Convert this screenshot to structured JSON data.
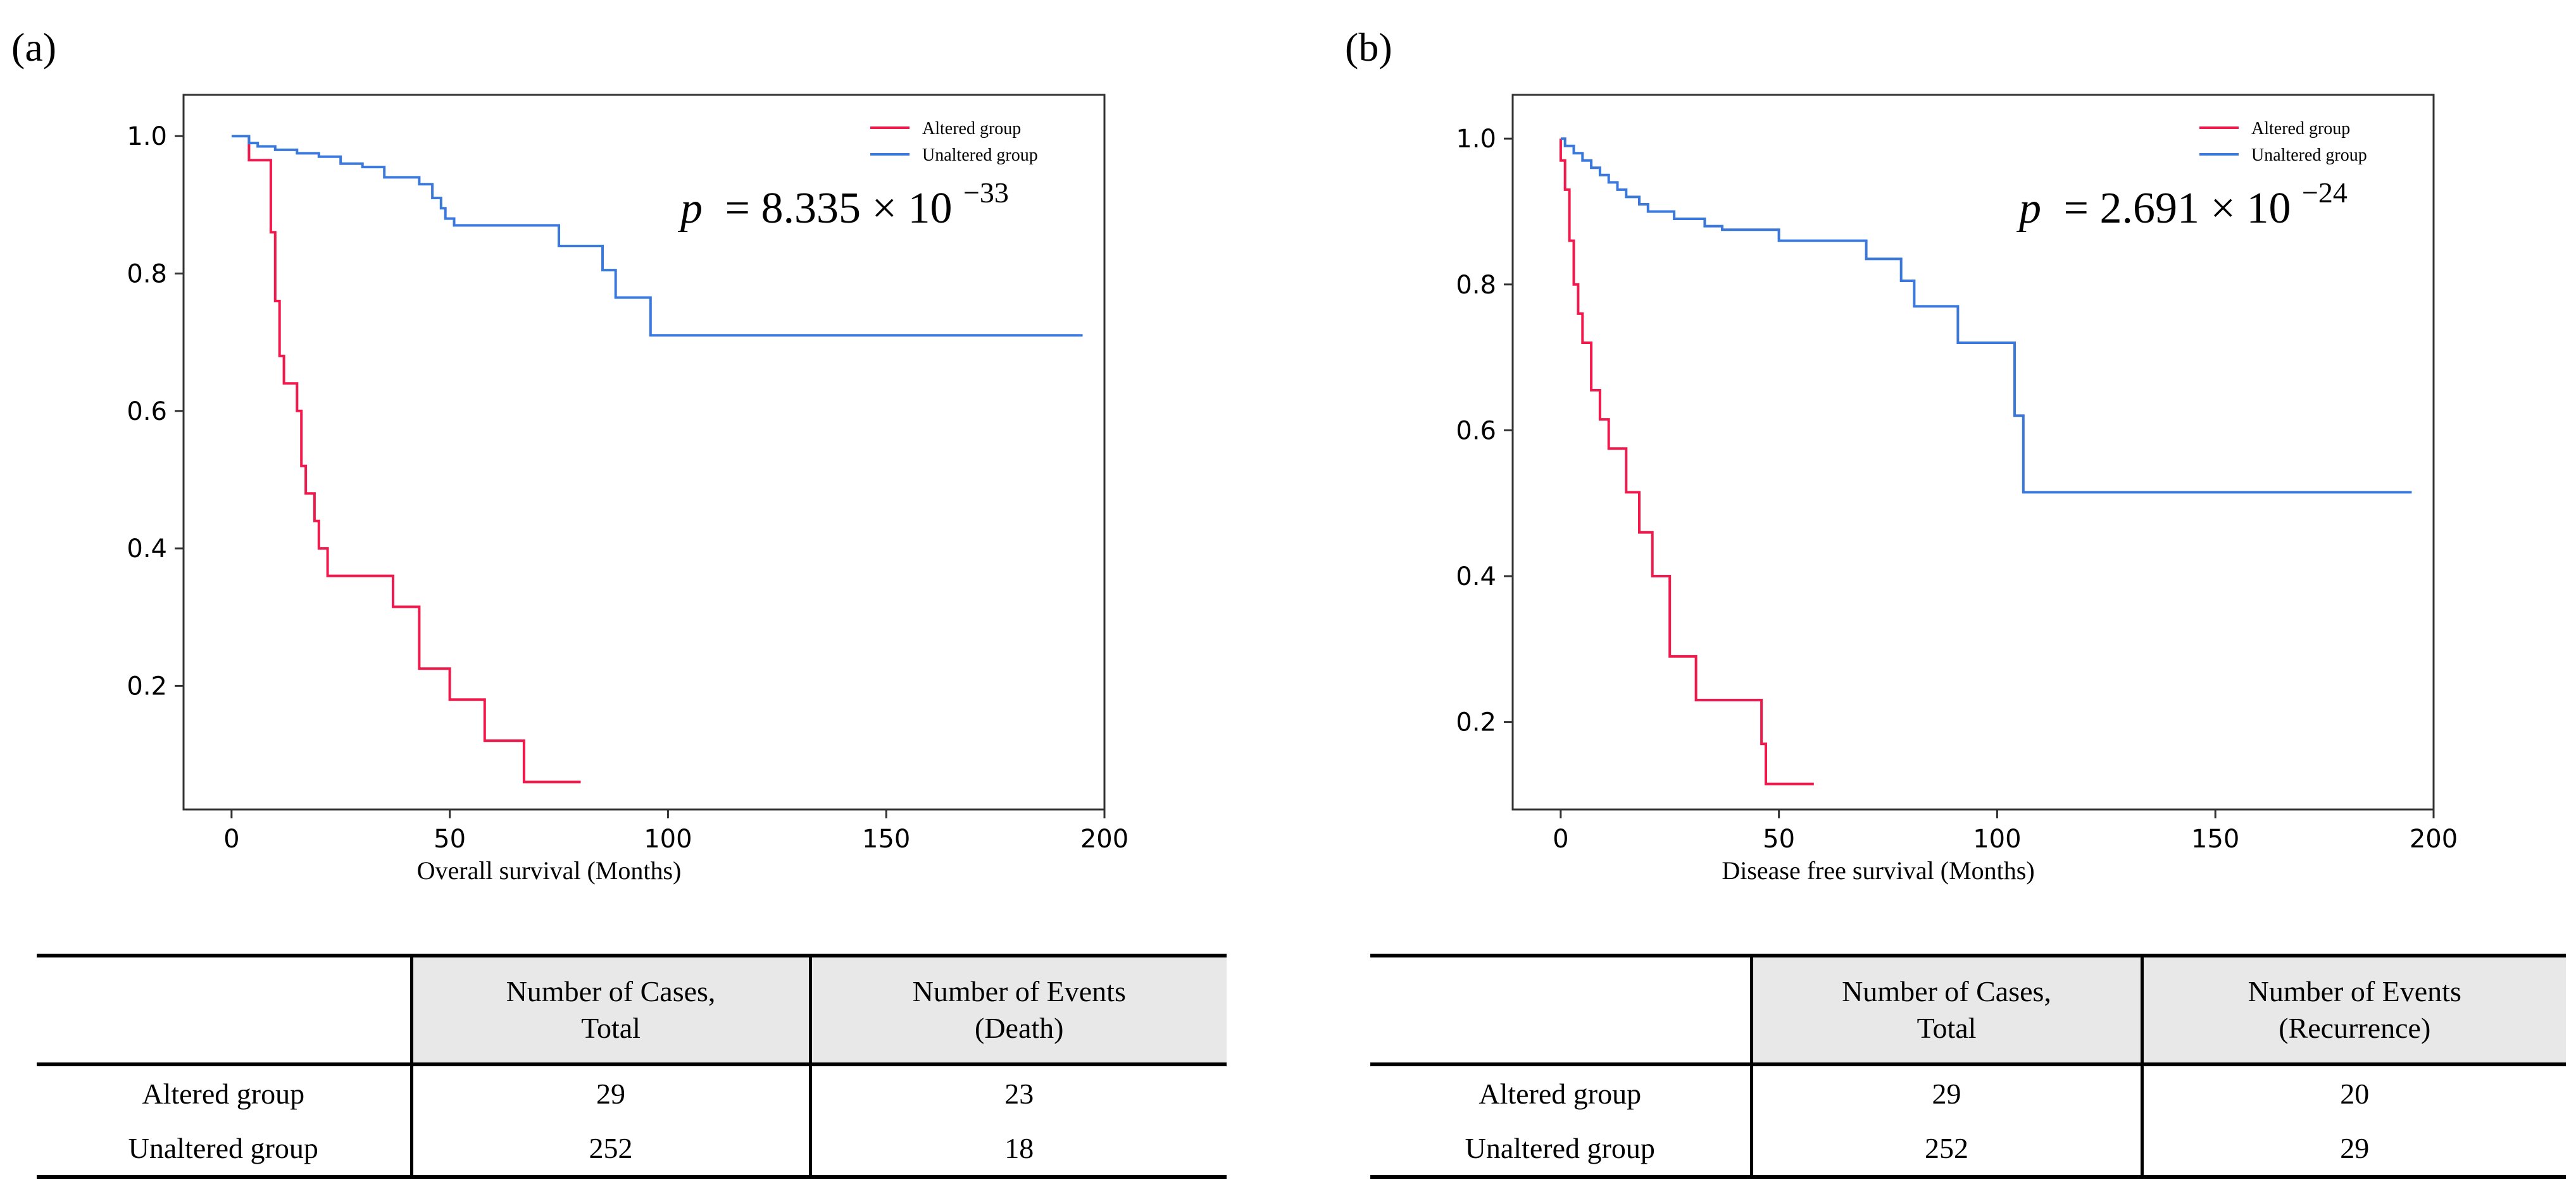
{
  "panels": {
    "a": {
      "label": "(a)",
      "p_prefix": "p",
      "p_value": "= 8.335 × 10",
      "p_exp": "−33",
      "table": {
        "headers": [
          "",
          "Number of Cases,",
          "Total",
          "Number of Events",
          "(Death)"
        ],
        "rows": [
          {
            "group": "Altered group",
            "cases": "29",
            "events": "23"
          },
          {
            "group": "Unaltered group",
            "cases": "252",
            "events": "18"
          }
        ]
      }
    },
    "b": {
      "label": "(b)",
      "p_prefix": "p",
      "p_value": "= 2.691 × 10",
      "p_exp": "−24",
      "table": {
        "headers": [
          "",
          "Number of Cases,",
          "Total",
          "Number of Events",
          "(Recurrence)"
        ],
        "rows": [
          {
            "group": "Altered group",
            "cases": "29",
            "events": "20"
          },
          {
            "group": "Unaltered group",
            "cases": "252",
            "events": "29"
          }
        ]
      }
    }
  },
  "colors": {
    "altered": "#f0194b",
    "unaltered": "#3b78dc",
    "axis": "#333333"
  },
  "chart_data": [
    {
      "type": "line",
      "step": true,
      "title": "",
      "xlabel": "Overall survival (Months)",
      "ylabel": "",
      "xlim": [
        -11,
        200
      ],
      "ylim": [
        0.02,
        1.06
      ],
      "xticks": [
        0,
        50,
        100,
        150,
        200
      ],
      "yticks": [
        0.2,
        0.4,
        0.6,
        0.8,
        1.0
      ],
      "xtick_labels": [
        "0",
        "50",
        "100",
        "150",
        "200"
      ],
      "ytick_labels": [
        "0.2",
        "0.4",
        "0.6",
        "0.8",
        "1.0"
      ],
      "legend": {
        "position": "top-right",
        "entries": [
          "Altered group",
          "Unaltered group"
        ]
      },
      "series": [
        {
          "name": "Altered group",
          "color": "#f0194b",
          "x": [
            4,
            4,
            9,
            9,
            10,
            10,
            11,
            11,
            12,
            12,
            15,
            15,
            16,
            16,
            17,
            17,
            19,
            19,
            20,
            20,
            22,
            22,
            37,
            37,
            43,
            43,
            50,
            50,
            58,
            58,
            67,
            67,
            80
          ],
          "y": [
            1.0,
            0.965,
            0.965,
            0.86,
            0.86,
            0.76,
            0.76,
            0.68,
            0.68,
            0.64,
            0.64,
            0.6,
            0.6,
            0.52,
            0.52,
            0.48,
            0.48,
            0.44,
            0.44,
            0.4,
            0.4,
            0.36,
            0.36,
            0.315,
            0.315,
            0.225,
            0.225,
            0.18,
            0.18,
            0.12,
            0.12,
            0.06,
            0.06
          ]
        },
        {
          "name": "Unaltered group",
          "color": "#3b78dc",
          "x": [
            0,
            4,
            4,
            6,
            6,
            10,
            10,
            15,
            15,
            20,
            20,
            25,
            25,
            30,
            30,
            35,
            35,
            43,
            43,
            46,
            46,
            48,
            48,
            49,
            49,
            51,
            51,
            75,
            75,
            85,
            85,
            88,
            88,
            96,
            96,
            195
          ],
          "y": [
            1.0,
            1.0,
            0.99,
            0.99,
            0.985,
            0.985,
            0.98,
            0.98,
            0.975,
            0.975,
            0.97,
            0.97,
            0.96,
            0.96,
            0.955,
            0.955,
            0.94,
            0.94,
            0.93,
            0.93,
            0.91,
            0.91,
            0.895,
            0.895,
            0.88,
            0.88,
            0.87,
            0.87,
            0.84,
            0.84,
            0.805,
            0.805,
            0.765,
            0.765,
            0.71,
            0.71
          ]
        }
      ]
    },
    {
      "type": "line",
      "step": true,
      "title": "",
      "xlabel": "Disease free survival (Months)",
      "ylabel": "",
      "xlim": [
        -11,
        200
      ],
      "ylim": [
        0.08,
        1.06
      ],
      "xticks": [
        0,
        50,
        100,
        150,
        200
      ],
      "yticks": [
        0.2,
        0.4,
        0.6,
        0.8,
        1.0
      ],
      "xtick_labels": [
        "0",
        "50",
        "100",
        "150",
        "200"
      ],
      "ytick_labels": [
        "0.2",
        "0.4",
        "0.6",
        "0.8",
        "1.0"
      ],
      "legend": {
        "position": "top-right",
        "entries": [
          "Altered group",
          "Unaltered group"
        ]
      },
      "series": [
        {
          "name": "Altered group",
          "color": "#f0194b",
          "x": [
            0,
            0,
            1,
            1,
            2,
            2,
            3,
            3,
            4,
            4,
            5,
            5,
            7,
            7,
            9,
            9,
            11,
            11,
            15,
            15,
            18,
            18,
            21,
            21,
            25,
            25,
            31,
            31,
            46,
            46,
            47,
            47,
            58
          ],
          "y": [
            1.0,
            0.97,
            0.97,
            0.93,
            0.93,
            0.86,
            0.86,
            0.8,
            0.8,
            0.76,
            0.76,
            0.72,
            0.72,
            0.655,
            0.655,
            0.615,
            0.615,
            0.575,
            0.575,
            0.515,
            0.515,
            0.46,
            0.46,
            0.4,
            0.4,
            0.29,
            0.29,
            0.23,
            0.23,
            0.17,
            0.17,
            0.115,
            0.115
          ]
        },
        {
          "name": "Unaltered group",
          "color": "#3b78dc",
          "x": [
            0,
            1,
            1,
            3,
            3,
            5,
            5,
            7,
            7,
            9,
            9,
            11,
            11,
            13,
            13,
            15,
            15,
            18,
            18,
            20,
            20,
            26,
            26,
            33,
            33,
            37,
            37,
            50,
            50,
            70,
            70,
            78,
            78,
            81,
            81,
            91,
            91,
            104,
            104,
            106,
            106,
            195
          ],
          "y": [
            1.0,
            1.0,
            0.99,
            0.99,
            0.98,
            0.98,
            0.97,
            0.97,
            0.96,
            0.96,
            0.95,
            0.95,
            0.94,
            0.94,
            0.93,
            0.93,
            0.92,
            0.92,
            0.91,
            0.91,
            0.9,
            0.9,
            0.89,
            0.89,
            0.88,
            0.88,
            0.875,
            0.875,
            0.86,
            0.86,
            0.835,
            0.835,
            0.805,
            0.805,
            0.77,
            0.77,
            0.72,
            0.72,
            0.62,
            0.62,
            0.515,
            0.515
          ]
        }
      ]
    }
  ]
}
